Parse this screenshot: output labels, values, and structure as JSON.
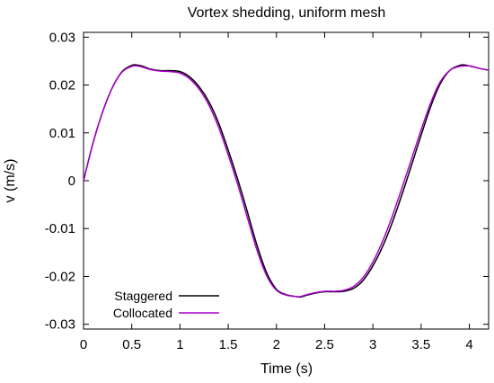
{
  "chart_data": {
    "type": "line",
    "title": "Vortex shedding, uniform mesh",
    "xlabel": "Time (s)",
    "ylabel": "v (m/s)",
    "xlim": [
      0,
      4.2
    ],
    "ylim": [
      -0.031,
      0.031
    ],
    "xticks": [
      0,
      0.5,
      1,
      1.5,
      2,
      2.5,
      3,
      3.5,
      4
    ],
    "xtick_labels": [
      "0",
      "0.5",
      "1",
      "1.5",
      "2",
      "2.5",
      "3",
      "3.5",
      "4"
    ],
    "yticks": [
      0.03,
      0.02,
      0.01,
      0,
      -0.01,
      -0.02,
      -0.03
    ],
    "ytick_labels": [
      "0.03",
      "0.02",
      "0.01",
      "0",
      "-0.01",
      "-0.02",
      "-0.03"
    ],
    "legend_position": "bottom-left",
    "grid": false,
    "series": [
      {
        "name": "Staggered",
        "color": "#000000",
        "x": [
          0,
          0.1,
          0.2,
          0.3,
          0.4,
          0.5,
          0.55,
          0.6,
          0.7,
          0.8,
          0.9,
          1.0,
          1.1,
          1.2,
          1.3,
          1.4,
          1.5,
          1.6,
          1.7,
          1.8,
          1.9,
          2.0,
          2.1,
          2.2,
          2.25,
          2.3,
          2.4,
          2.5,
          2.6,
          2.7,
          2.8,
          2.9,
          3.0,
          3.1,
          3.2,
          3.3,
          3.4,
          3.5,
          3.6,
          3.7,
          3.8,
          3.9,
          3.95,
          4.0,
          4.1,
          4.2
        ],
        "y": [
          0.0,
          0.008,
          0.0145,
          0.0195,
          0.0228,
          0.0241,
          0.0242,
          0.024,
          0.0233,
          0.023,
          0.023,
          0.0228,
          0.0217,
          0.0196,
          0.0165,
          0.0121,
          0.0064,
          0.0002,
          -0.0066,
          -0.0136,
          -0.0193,
          -0.0227,
          -0.0238,
          -0.0242,
          -0.0243,
          -0.024,
          -0.0235,
          -0.0232,
          -0.0232,
          -0.0231,
          -0.0225,
          -0.0208,
          -0.0178,
          -0.0138,
          -0.0088,
          -0.003,
          0.0032,
          0.0095,
          0.0155,
          0.0203,
          0.0231,
          0.0241,
          0.0242,
          0.024,
          0.0235,
          0.0231
        ]
      },
      {
        "name": "Collocated",
        "color": "#aa00cc",
        "x": [
          0,
          0.1,
          0.2,
          0.3,
          0.4,
          0.5,
          0.55,
          0.6,
          0.7,
          0.8,
          0.9,
          1.0,
          1.1,
          1.2,
          1.3,
          1.4,
          1.5,
          1.6,
          1.7,
          1.8,
          1.9,
          2.0,
          2.1,
          2.2,
          2.25,
          2.3,
          2.4,
          2.5,
          2.6,
          2.7,
          2.8,
          2.9,
          3.0,
          3.1,
          3.2,
          3.3,
          3.4,
          3.5,
          3.6,
          3.7,
          3.8,
          3.9,
          4.0,
          4.05,
          4.1,
          4.2
        ],
        "y": [
          0.0,
          0.008,
          0.0145,
          0.0195,
          0.0227,
          0.0239,
          0.024,
          0.0238,
          0.0232,
          0.0229,
          0.0228,
          0.0225,
          0.0213,
          0.0191,
          0.0158,
          0.0112,
          0.0054,
          -0.0009,
          -0.0078,
          -0.0146,
          -0.0199,
          -0.0229,
          -0.0239,
          -0.0242,
          -0.0242,
          -0.0239,
          -0.0234,
          -0.0231,
          -0.0231,
          -0.0229,
          -0.0221,
          -0.0202,
          -0.017,
          -0.0127,
          -0.0075,
          -0.0016,
          0.0045,
          0.0106,
          0.0163,
          0.0207,
          0.0231,
          0.0239,
          0.024,
          0.0238,
          0.0235,
          0.0231
        ]
      }
    ]
  }
}
